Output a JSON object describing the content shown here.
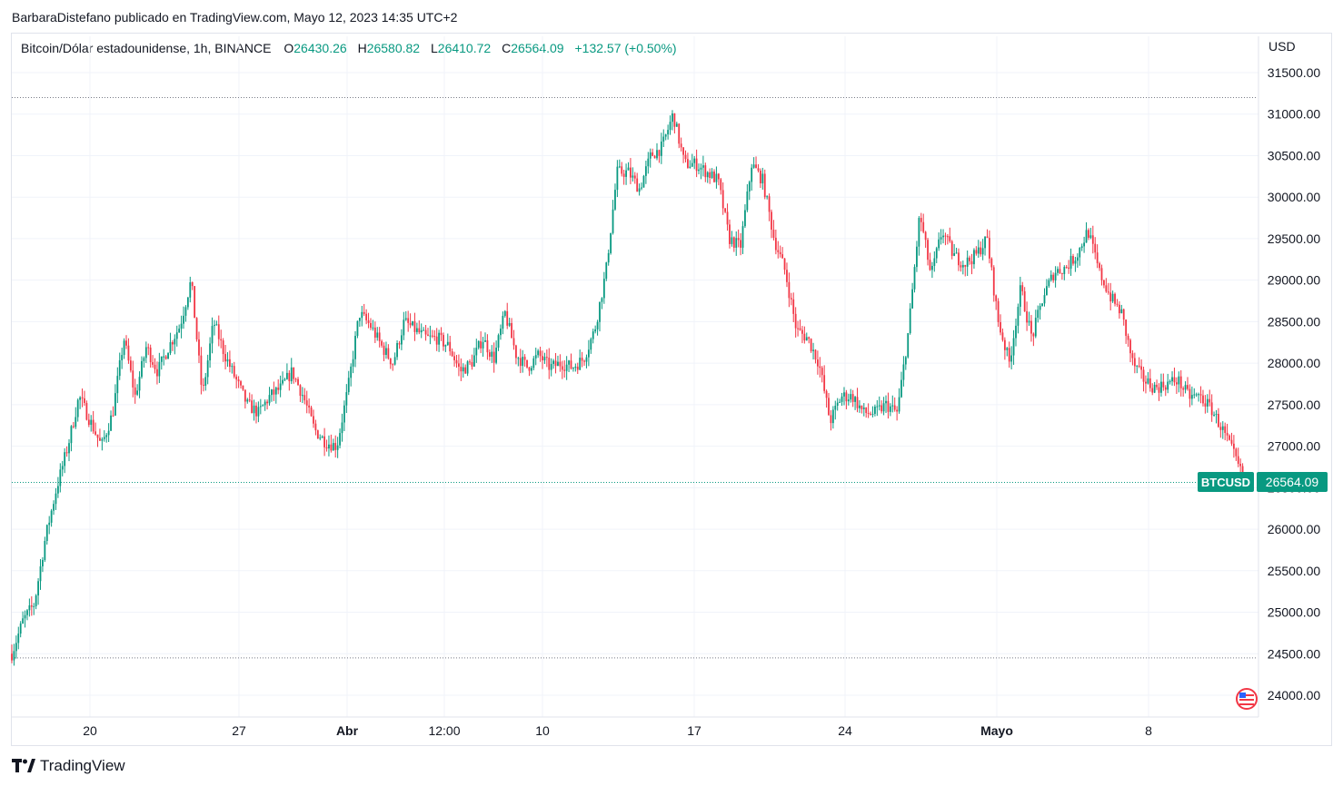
{
  "header": {
    "published_text": "BarbaraDistefano publicado en TradingView.com, Mayo 12, 2023 14:35 UTC+2"
  },
  "legend": {
    "symbol_text": "Bitcoin/Dólar estadounidense, 1h, BINANCE",
    "open_label": "O",
    "open_value": "26430.26",
    "high_label": "H",
    "high_value": "26580.82",
    "low_label": "L",
    "low_value": "26410.72",
    "close_label": "C",
    "close_value": "26564.09",
    "change_text": "+132.57 (+0.50%)"
  },
  "price_axis": {
    "currency": "USD"
  },
  "last_price": {
    "ticker": "BTCUSD",
    "value": "26564.09"
  },
  "brand": {
    "name": "TradingView"
  },
  "colors": {
    "up": "#089981",
    "down": "#f23645",
    "grid": "#f0f3fa",
    "text": "#131722"
  },
  "chart_data": {
    "type": "line",
    "title": "Bitcoin/Dólar estadounidense, 1h, BINANCE",
    "x_ticks": [
      "20",
      "27",
      "Abr",
      "12:00",
      "10",
      "17",
      "24",
      "Mayo",
      "8"
    ],
    "ylim": [
      23800,
      31800
    ],
    "y_ticks": [
      24000,
      24500,
      25000,
      25500,
      26000,
      26500,
      27000,
      27500,
      28000,
      28500,
      29000,
      29500,
      30000,
      30500,
      31000,
      31500
    ],
    "reference_lines": [
      31200,
      26564.09,
      24450
    ],
    "series": [
      {
        "values": [
          24500,
          24900,
          25100,
          25900,
          26500,
          27000,
          27600,
          27300,
          27000,
          27400,
          28300,
          27600,
          28200,
          27900,
          28200,
          28450,
          29000,
          27600,
          28500,
          28100,
          27800,
          27500,
          27400,
          27600,
          27700,
          27900,
          27600,
          27200,
          27050,
          27000,
          27700,
          28600,
          28450,
          28200,
          28000,
          28500,
          28400,
          28300,
          28300,
          28200,
          27900,
          28000,
          28300,
          28050,
          28600,
          28100,
          27950,
          28100,
          27950,
          28000,
          27950,
          28050,
          28400,
          29100,
          30300,
          30300,
          30100,
          30500,
          30600,
          31000,
          30400,
          30400,
          30300,
          30200,
          29500,
          29400,
          30400,
          30200,
          29500,
          29100,
          28400,
          28300,
          28000,
          27300,
          27600,
          27600,
          27400,
          27400,
          27500,
          27400,
          28400,
          29800,
          29050,
          29600,
          29300,
          29200,
          29300,
          29500,
          28500,
          28000,
          28900,
          28300,
          28800,
          29100,
          29150,
          29300,
          29600,
          29100,
          28800,
          28600,
          28000,
          27800,
          27700,
          27750,
          27800,
          27600,
          27600,
          27450,
          27200,
          26900,
          26564.09
        ]
      }
    ]
  }
}
